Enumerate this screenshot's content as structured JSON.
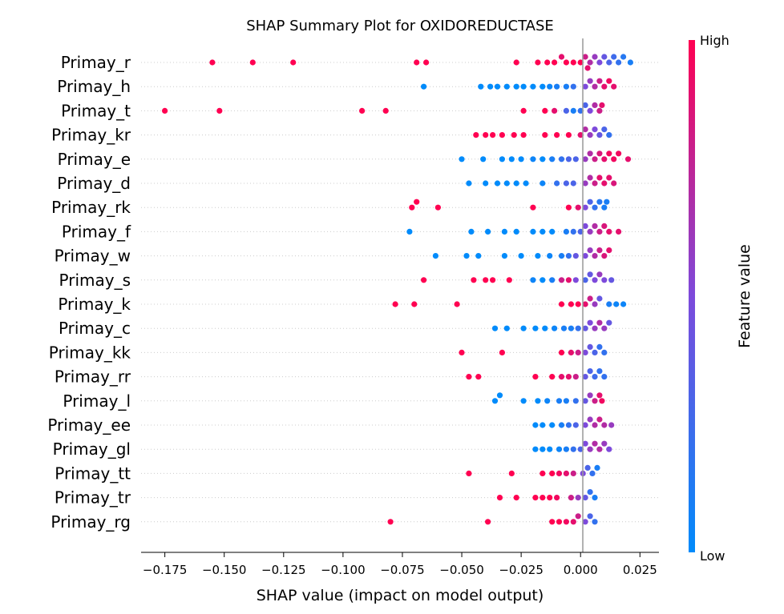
{
  "chart_data": {
    "type": "scatter",
    "subtype": "shap-beeswarm",
    "title": "SHAP Summary Plot for OXIDOREDUCTASE",
    "xlabel": "SHAP value (impact on model output)",
    "xlim": [
      -0.185,
      0.033
    ],
    "xticks": [
      -0.175,
      -0.15,
      -0.125,
      -0.1,
      -0.075,
      -0.05,
      -0.025,
      0.0,
      0.025
    ],
    "xtick_labels": [
      "−0.175",
      "−0.150",
      "−0.125",
      "−0.100",
      "−0.075",
      "−0.050",
      "−0.025",
      "0.000",
      "0.025"
    ],
    "colorbar": {
      "label": "Feature value",
      "high_label": "High",
      "low_label": "Low",
      "high_color": "#ff0051",
      "low_color": "#008bfb"
    },
    "features": [
      {
        "name": "Primay_r",
        "points": [
          [
            -0.155,
            1
          ],
          [
            -0.138,
            1
          ],
          [
            -0.121,
            1
          ],
          [
            -0.069,
            1
          ],
          [
            -0.065,
            1
          ],
          [
            -0.027,
            1
          ],
          [
            -0.018,
            1
          ],
          [
            -0.014,
            1
          ],
          [
            -0.011,
            1
          ],
          [
            -0.006,
            1
          ],
          [
            -0.003,
            1
          ],
          [
            0.0,
            1
          ],
          [
            0.002,
            0.8
          ],
          [
            0.004,
            0.7
          ],
          [
            0.006,
            0.6
          ],
          [
            0.008,
            0.5
          ],
          [
            0.01,
            0.4
          ],
          [
            0.012,
            0.3
          ],
          [
            0.014,
            0.25
          ],
          [
            0.016,
            0.2
          ],
          [
            0.018,
            0.15
          ],
          [
            0.021,
            0.1
          ],
          [
            -0.008,
            0.9
          ],
          [
            0.003,
            0.9
          ]
        ]
      },
      {
        "name": "Primay_h",
        "points": [
          [
            -0.066,
            0
          ],
          [
            -0.042,
            0
          ],
          [
            -0.038,
            0
          ],
          [
            -0.035,
            0
          ],
          [
            -0.031,
            0
          ],
          [
            -0.027,
            0
          ],
          [
            -0.024,
            0
          ],
          [
            -0.02,
            0
          ],
          [
            -0.016,
            0
          ],
          [
            -0.013,
            0.05
          ],
          [
            -0.01,
            0.1
          ],
          [
            -0.006,
            0.1
          ],
          [
            -0.003,
            0.2
          ],
          [
            0.002,
            0.5
          ],
          [
            0.004,
            0.6
          ],
          [
            0.006,
            0.7
          ],
          [
            0.008,
            0.8
          ],
          [
            0.01,
            0.9
          ],
          [
            0.012,
            0.95
          ],
          [
            0.014,
            0.9
          ]
        ]
      },
      {
        "name": "Primay_t",
        "points": [
          [
            -0.175,
            1
          ],
          [
            -0.152,
            1
          ],
          [
            -0.092,
            1
          ],
          [
            -0.082,
            1
          ],
          [
            -0.024,
            1
          ],
          [
            -0.015,
            1
          ],
          [
            -0.011,
            0.9
          ],
          [
            -0.006,
            0.3
          ],
          [
            -0.003,
            0.1
          ],
          [
            0.0,
            0.2
          ],
          [
            0.002,
            0.3
          ],
          [
            0.004,
            0.5
          ],
          [
            0.006,
            0.7
          ],
          [
            0.008,
            0.8
          ],
          [
            0.009,
            0.9
          ]
        ]
      },
      {
        "name": "Primay_kr",
        "points": [
          [
            -0.044,
            1
          ],
          [
            -0.04,
            1
          ],
          [
            -0.037,
            1
          ],
          [
            -0.033,
            1
          ],
          [
            -0.028,
            1
          ],
          [
            -0.024,
            1
          ],
          [
            -0.015,
            1
          ],
          [
            -0.01,
            1
          ],
          [
            -0.005,
            1
          ],
          [
            0.0,
            0.9
          ],
          [
            0.002,
            0.7
          ],
          [
            0.004,
            0.6
          ],
          [
            0.006,
            0.5
          ],
          [
            0.008,
            0.4
          ],
          [
            0.01,
            0.3
          ],
          [
            0.012,
            0.2
          ]
        ]
      },
      {
        "name": "Primay_e",
        "points": [
          [
            -0.05,
            0
          ],
          [
            -0.041,
            0
          ],
          [
            -0.033,
            0
          ],
          [
            -0.029,
            0
          ],
          [
            -0.025,
            0
          ],
          [
            -0.02,
            0.05
          ],
          [
            -0.016,
            0
          ],
          [
            -0.012,
            0.1
          ],
          [
            -0.008,
            0.2
          ],
          [
            -0.005,
            0.3
          ],
          [
            -0.002,
            0.3
          ],
          [
            0.002,
            0.6
          ],
          [
            0.004,
            0.7
          ],
          [
            0.006,
            0.8
          ],
          [
            0.008,
            0.85
          ],
          [
            0.01,
            0.9
          ],
          [
            0.012,
            0.95
          ],
          [
            0.014,
            0.95
          ],
          [
            0.016,
            0.95
          ],
          [
            0.02,
            0.9
          ]
        ]
      },
      {
        "name": "Primay_d",
        "points": [
          [
            -0.047,
            0
          ],
          [
            -0.04,
            0
          ],
          [
            -0.035,
            0
          ],
          [
            -0.031,
            0
          ],
          [
            -0.027,
            0
          ],
          [
            -0.023,
            0
          ],
          [
            -0.016,
            0.05
          ],
          [
            -0.01,
            0.2
          ],
          [
            -0.006,
            0.3
          ],
          [
            -0.003,
            0.3
          ],
          [
            0.002,
            0.6
          ],
          [
            0.004,
            0.7
          ],
          [
            0.006,
            0.8
          ],
          [
            0.008,
            0.9
          ],
          [
            0.01,
            0.9
          ],
          [
            0.012,
            0.9
          ],
          [
            0.014,
            0.85
          ]
        ]
      },
      {
        "name": "Primay_rk",
        "points": [
          [
            -0.071,
            1
          ],
          [
            -0.069,
            1
          ],
          [
            -0.06,
            1
          ],
          [
            -0.02,
            1
          ],
          [
            -0.005,
            1
          ],
          [
            -0.001,
            0.9
          ],
          [
            0.002,
            0.5
          ],
          [
            0.004,
            0.3
          ],
          [
            0.006,
            0.2
          ],
          [
            0.008,
            0.15
          ],
          [
            0.01,
            0.1
          ],
          [
            0.011,
            0.1
          ]
        ]
      },
      {
        "name": "Primay_f",
        "points": [
          [
            -0.072,
            0
          ],
          [
            -0.046,
            0
          ],
          [
            -0.039,
            0
          ],
          [
            -0.032,
            0
          ],
          [
            -0.027,
            0
          ],
          [
            -0.02,
            0
          ],
          [
            -0.016,
            0
          ],
          [
            -0.012,
            0
          ],
          [
            -0.006,
            0.1
          ],
          [
            -0.003,
            0.2
          ],
          [
            0.0,
            0.3
          ],
          [
            0.002,
            0.5
          ],
          [
            0.004,
            0.6
          ],
          [
            0.006,
            0.7
          ],
          [
            0.008,
            0.8
          ],
          [
            0.01,
            0.85
          ],
          [
            0.012,
            0.9
          ],
          [
            0.016,
            0.9
          ]
        ]
      },
      {
        "name": "Primay_w",
        "points": [
          [
            -0.061,
            0
          ],
          [
            -0.048,
            0
          ],
          [
            -0.043,
            0
          ],
          [
            -0.032,
            0
          ],
          [
            -0.025,
            0
          ],
          [
            -0.018,
            0
          ],
          [
            -0.013,
            0.05
          ],
          [
            -0.008,
            0.1
          ],
          [
            -0.005,
            0.2
          ],
          [
            -0.002,
            0.4
          ],
          [
            0.002,
            0.5
          ],
          [
            0.004,
            0.6
          ],
          [
            0.006,
            0.7
          ],
          [
            0.008,
            0.8
          ],
          [
            0.01,
            0.85
          ],
          [
            0.012,
            0.9
          ]
        ]
      },
      {
        "name": "Primay_s",
        "points": [
          [
            -0.066,
            1
          ],
          [
            -0.045,
            1
          ],
          [
            -0.04,
            1
          ],
          [
            -0.037,
            1
          ],
          [
            -0.03,
            1
          ],
          [
            -0.02,
            0.05
          ],
          [
            -0.016,
            0
          ],
          [
            -0.012,
            0.1
          ],
          [
            -0.008,
            0.8
          ],
          [
            -0.005,
            0.9
          ],
          [
            -0.002,
            0.5
          ],
          [
            0.002,
            0.3
          ],
          [
            0.004,
            0.4
          ],
          [
            0.006,
            0.5
          ],
          [
            0.008,
            0.6
          ],
          [
            0.01,
            0.5
          ],
          [
            0.013,
            0.4
          ]
        ]
      },
      {
        "name": "Primay_k",
        "points": [
          [
            -0.078,
            1
          ],
          [
            -0.07,
            1
          ],
          [
            -0.052,
            1
          ],
          [
            -0.008,
            1
          ],
          [
            -0.004,
            1
          ],
          [
            -0.001,
            1
          ],
          [
            0.002,
            0.9
          ],
          [
            0.004,
            0.8
          ],
          [
            0.006,
            0.6
          ],
          [
            0.008,
            0.4
          ],
          [
            0.012,
            0.1
          ],
          [
            0.015,
            0.05
          ],
          [
            0.018,
            0.05
          ]
        ]
      },
      {
        "name": "Primay_c",
        "points": [
          [
            -0.036,
            0
          ],
          [
            -0.031,
            0
          ],
          [
            -0.024,
            0
          ],
          [
            -0.019,
            0
          ],
          [
            -0.015,
            0
          ],
          [
            -0.011,
            0.05
          ],
          [
            -0.007,
            0.1
          ],
          [
            -0.004,
            0.1
          ],
          [
            -0.001,
            0.2
          ],
          [
            0.002,
            0.4
          ],
          [
            0.004,
            0.5
          ],
          [
            0.006,
            0.6
          ],
          [
            0.008,
            0.7
          ],
          [
            0.01,
            0.6
          ],
          [
            0.012,
            0.4
          ]
        ]
      },
      {
        "name": "Primay_kk",
        "points": [
          [
            -0.05,
            1
          ],
          [
            -0.033,
            1
          ],
          [
            -0.008,
            1
          ],
          [
            -0.004,
            0.9
          ],
          [
            -0.001,
            0.8
          ],
          [
            0.002,
            0.5
          ],
          [
            0.004,
            0.4
          ],
          [
            0.006,
            0.3
          ],
          [
            0.008,
            0.2
          ],
          [
            0.01,
            0.2
          ]
        ]
      },
      {
        "name": "Primay_rr",
        "points": [
          [
            -0.047,
            1
          ],
          [
            -0.043,
            1
          ],
          [
            -0.019,
            1
          ],
          [
            -0.012,
            1
          ],
          [
            -0.008,
            0.9
          ],
          [
            -0.005,
            0.9
          ],
          [
            -0.002,
            0.8
          ],
          [
            0.002,
            0.4
          ],
          [
            0.004,
            0.3
          ],
          [
            0.006,
            0.25
          ],
          [
            0.008,
            0.2
          ],
          [
            0.01,
            0.2
          ]
        ]
      },
      {
        "name": "Primay_l",
        "points": [
          [
            -0.036,
            0
          ],
          [
            -0.034,
            0
          ],
          [
            -0.024,
            0
          ],
          [
            -0.018,
            0
          ],
          [
            -0.014,
            0.05
          ],
          [
            -0.009,
            0.1
          ],
          [
            -0.006,
            0.1
          ],
          [
            -0.002,
            0.2
          ],
          [
            0.002,
            0.4
          ],
          [
            0.004,
            0.6
          ],
          [
            0.006,
            0.8
          ],
          [
            0.008,
            0.9
          ],
          [
            0.009,
            0.95
          ]
        ]
      },
      {
        "name": "Primay_ee",
        "points": [
          [
            -0.019,
            0
          ],
          [
            -0.016,
            0
          ],
          [
            -0.012,
            0
          ],
          [
            -0.008,
            0.1
          ],
          [
            -0.005,
            0.2
          ],
          [
            -0.002,
            0.3
          ],
          [
            0.002,
            0.5
          ],
          [
            0.004,
            0.6
          ],
          [
            0.006,
            0.7
          ],
          [
            0.008,
            0.8
          ],
          [
            0.01,
            0.7
          ],
          [
            0.013,
            0.6
          ]
        ]
      },
      {
        "name": "Primay_gl",
        "points": [
          [
            -0.019,
            0
          ],
          [
            -0.016,
            0
          ],
          [
            -0.013,
            0
          ],
          [
            -0.009,
            0.05
          ],
          [
            -0.006,
            0.1
          ],
          [
            -0.003,
            0.2
          ],
          [
            0.0,
            0.3
          ],
          [
            0.002,
            0.5
          ],
          [
            0.004,
            0.6
          ],
          [
            0.006,
            0.7
          ],
          [
            0.008,
            0.7
          ],
          [
            0.01,
            0.6
          ],
          [
            0.012,
            0.5
          ]
        ]
      },
      {
        "name": "Primay_tt",
        "points": [
          [
            -0.047,
            1
          ],
          [
            -0.029,
            1
          ],
          [
            -0.016,
            1
          ],
          [
            -0.012,
            1
          ],
          [
            -0.009,
            0.95
          ],
          [
            -0.006,
            0.9
          ],
          [
            -0.003,
            0.8
          ],
          [
            0.001,
            0.5
          ],
          [
            0.003,
            0.3
          ],
          [
            0.005,
            0.2
          ],
          [
            0.007,
            0.1
          ]
        ]
      },
      {
        "name": "Primay_tr",
        "points": [
          [
            -0.034,
            1
          ],
          [
            -0.027,
            1
          ],
          [
            -0.019,
            1
          ],
          [
            -0.016,
            1
          ],
          [
            -0.013,
            1
          ],
          [
            -0.01,
            0.95
          ],
          [
            -0.004,
            0.8
          ],
          [
            -0.001,
            0.6
          ],
          [
            0.002,
            0.4
          ],
          [
            0.004,
            0.2
          ],
          [
            0.006,
            0.1
          ]
        ]
      },
      {
        "name": "Primay_rg",
        "points": [
          [
            -0.08,
            1
          ],
          [
            -0.039,
            1
          ],
          [
            -0.012,
            1
          ],
          [
            -0.009,
            1
          ],
          [
            -0.006,
            0.95
          ],
          [
            -0.003,
            0.9
          ],
          [
            -0.001,
            0.8
          ],
          [
            0.002,
            0.5
          ],
          [
            0.004,
            0.3
          ],
          [
            0.006,
            0.2
          ]
        ]
      }
    ]
  }
}
